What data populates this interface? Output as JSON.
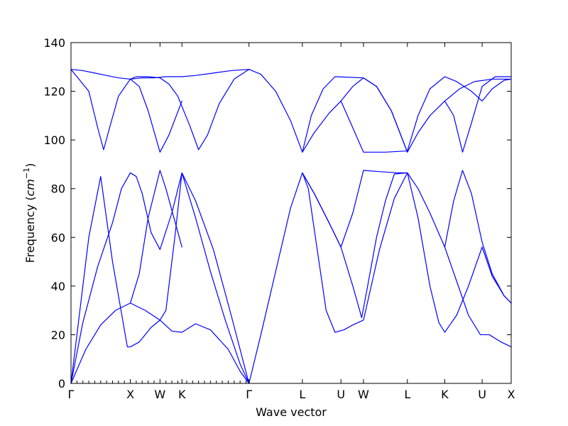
{
  "chart_data": {
    "type": "line",
    "title": "",
    "xlabel": "Wave vector",
    "ylabel": "Frequency",
    "ylabel_unit": "cm",
    "ylabel_unit_exponent": "−1",
    "ylim": [
      0,
      140
    ],
    "yticks": [
      0,
      20,
      40,
      60,
      80,
      100,
      120,
      140
    ],
    "xlim": [
      0,
      7.42
    ],
    "high_symmetry_points": [
      {
        "label": "Γ",
        "x": 0
      },
      {
        "label": "X",
        "x": 1.0
      },
      {
        "label": "W",
        "x": 1.5
      },
      {
        "label": "K",
        "x": 1.87
      },
      {
        "label": "Γ",
        "x": 3.0
      },
      {
        "label": "L",
        "x": 3.9
      },
      {
        "label": "U",
        "x": 4.55
      },
      {
        "label": "W",
        "x": 4.93
      },
      {
        "label": "L",
        "x": 5.67
      },
      {
        "label": "K",
        "x": 6.3
      },
      {
        "label": "U",
        "x": 6.93
      },
      {
        "label": "X",
        "x": 7.42
      }
    ],
    "minor_ticks_x": [
      0.1,
      0.2,
      0.3,
      0.4,
      0.5,
      0.6,
      0.7,
      0.8,
      0.9,
      1.1,
      1.2,
      1.3,
      1.4,
      1.6,
      1.7,
      1.8,
      1.95,
      2.05,
      2.15,
      2.25,
      2.35,
      2.45,
      2.55,
      2.65,
      2.75,
      2.85,
      2.95
    ],
    "grid": false,
    "legend": "none",
    "line_color": "#0000ff",
    "series": [
      {
        "points": [
          [
            0,
            0
          ],
          [
            0.25,
            14
          ],
          [
            0.5,
            24
          ],
          [
            0.75,
            30
          ],
          [
            1.0,
            33
          ],
          [
            1.25,
            30
          ],
          [
            1.5,
            26
          ],
          [
            1.7,
            21.5
          ],
          [
            1.87,
            21
          ],
          [
            2.1,
            24.5
          ],
          [
            2.35,
            22
          ],
          [
            2.65,
            14
          ],
          [
            2.85,
            5
          ],
          [
            3.0,
            0
          ]
        ]
      },
      {
        "points": [
          [
            0,
            0
          ],
          [
            0.2,
            25
          ],
          [
            0.45,
            48
          ],
          [
            0.7,
            66
          ],
          [
            0.85,
            80
          ],
          [
            1.0,
            86.5
          ],
          [
            1.1,
            85
          ],
          [
            1.2,
            78
          ],
          [
            1.35,
            62
          ],
          [
            1.5,
            55
          ],
          [
            1.7,
            70
          ],
          [
            1.87,
            86.5
          ],
          [
            2.1,
            75
          ],
          [
            2.4,
            55
          ],
          [
            2.7,
            28
          ],
          [
            3.0,
            0
          ]
        ]
      },
      {
        "points": [
          [
            0,
            0
          ],
          [
            0.3,
            60
          ],
          [
            0.5,
            85
          ],
          [
            0.7,
            50
          ],
          [
            0.95,
            15
          ],
          [
            1.0,
            15
          ],
          [
            1.15,
            17
          ],
          [
            1.35,
            23
          ],
          [
            1.5,
            26
          ],
          [
            1.6,
            30
          ],
          [
            1.75,
            60
          ],
          [
            1.87,
            86.5
          ],
          [
            2.1,
            68
          ],
          [
            2.35,
            46
          ],
          [
            2.6,
            26
          ],
          [
            2.85,
            8
          ],
          [
            3.0,
            0
          ]
        ]
      },
      {
        "points": [
          [
            1.0,
            33
          ],
          [
            1.15,
            45
          ],
          [
            1.3,
            68
          ],
          [
            1.5,
            87.5
          ],
          [
            1.6,
            80
          ],
          [
            1.87,
            56
          ]
        ]
      },
      {
        "points": [
          [
            3.0,
            0
          ],
          [
            3.2,
            20
          ],
          [
            3.45,
            46
          ],
          [
            3.7,
            72
          ],
          [
            3.9,
            86.5
          ],
          [
            4.0,
            80
          ],
          [
            4.15,
            55
          ],
          [
            4.3,
            30
          ],
          [
            4.45,
            21
          ],
          [
            4.6,
            22
          ],
          [
            4.75,
            24
          ],
          [
            4.93,
            26
          ],
          [
            5.2,
            55
          ],
          [
            5.45,
            76
          ],
          [
            5.67,
            86.5
          ],
          [
            5.85,
            68
          ],
          [
            6.05,
            40
          ],
          [
            6.2,
            25
          ],
          [
            6.3,
            21
          ],
          [
            6.5,
            28
          ],
          [
            6.7,
            40
          ],
          [
            6.93,
            56
          ],
          [
            7.1,
            44
          ],
          [
            7.3,
            36
          ],
          [
            7.42,
            33
          ]
        ]
      },
      {
        "points": [
          [
            3.9,
            86.5
          ],
          [
            4.1,
            78
          ],
          [
            4.35,
            66
          ],
          [
            4.55,
            56
          ],
          [
            4.75,
            40
          ],
          [
            4.9,
            27
          ],
          [
            5.0,
            40
          ],
          [
            5.15,
            60
          ],
          [
            5.3,
            75
          ],
          [
            5.45,
            86
          ],
          [
            5.67,
            86.5
          ],
          [
            5.85,
            80
          ],
          [
            6.05,
            70
          ],
          [
            6.3,
            56
          ],
          [
            6.5,
            42
          ],
          [
            6.7,
            28
          ],
          [
            6.9,
            20
          ],
          [
            7.05,
            20
          ],
          [
            7.25,
            17
          ],
          [
            7.42,
            15
          ]
        ]
      },
      {
        "points": [
          [
            3.9,
            86.5
          ],
          [
            4.1,
            78
          ],
          [
            4.35,
            66
          ],
          [
            4.55,
            56
          ],
          [
            4.75,
            70
          ],
          [
            4.93,
            87.5
          ],
          [
            5.2,
            87
          ],
          [
            5.5,
            86.5
          ],
          [
            5.67,
            86.5
          ]
        ]
      },
      {
        "points": [
          [
            6.3,
            56
          ],
          [
            6.45,
            75
          ],
          [
            6.6,
            87.5
          ],
          [
            6.75,
            78
          ],
          [
            6.93,
            58
          ],
          [
            7.1,
            45
          ],
          [
            7.3,
            36
          ],
          [
            7.42,
            33
          ]
        ]
      },
      {
        "points": [
          [
            0,
            129
          ],
          [
            0.2,
            128.5
          ],
          [
            0.4,
            127.5
          ],
          [
            0.6,
            126.5
          ],
          [
            0.8,
            125.5
          ],
          [
            1.0,
            125
          ],
          [
            1.2,
            125.5
          ],
          [
            1.4,
            125.5
          ],
          [
            1.6,
            126
          ],
          [
            1.87,
            126
          ],
          [
            2.1,
            126.5
          ],
          [
            2.4,
            127.5
          ],
          [
            2.7,
            128.5
          ],
          [
            3.0,
            129
          ]
        ]
      },
      {
        "points": [
          [
            0,
            129
          ],
          [
            0.3,
            120
          ],
          [
            0.45,
            105
          ],
          [
            0.55,
            96
          ],
          [
            0.65,
            105
          ],
          [
            0.8,
            118
          ],
          [
            1.0,
            125
          ],
          [
            1.1,
            126
          ],
          [
            1.3,
            126
          ],
          [
            1.5,
            125.5
          ],
          [
            1.65,
            123
          ],
          [
            1.8,
            118
          ],
          [
            2.0,
            106
          ],
          [
            2.15,
            96
          ],
          [
            2.3,
            102
          ],
          [
            2.5,
            115
          ],
          [
            2.75,
            125
          ],
          [
            3.0,
            129
          ]
        ]
      },
      {
        "points": [
          [
            1.0,
            125
          ],
          [
            1.15,
            122
          ],
          [
            1.3,
            112
          ],
          [
            1.5,
            95
          ],
          [
            1.65,
            102
          ],
          [
            1.87,
            116
          ]
        ]
      },
      {
        "points": [
          [
            3.0,
            129
          ],
          [
            3.2,
            127
          ],
          [
            3.45,
            120
          ],
          [
            3.7,
            108
          ],
          [
            3.9,
            95
          ],
          [
            4.1,
            103
          ],
          [
            4.35,
            111
          ],
          [
            4.55,
            116
          ],
          [
            4.75,
            122
          ],
          [
            4.93,
            125.5
          ],
          [
            5.15,
            122
          ],
          [
            5.4,
            112
          ],
          [
            5.67,
            95
          ],
          [
            5.85,
            103
          ],
          [
            6.05,
            110
          ],
          [
            6.3,
            116
          ],
          [
            6.55,
            121
          ],
          [
            6.8,
            124
          ],
          [
            7.1,
            125
          ],
          [
            7.42,
            125
          ]
        ]
      },
      {
        "points": [
          [
            3.9,
            95
          ],
          [
            4.05,
            110
          ],
          [
            4.25,
            121
          ],
          [
            4.45,
            126
          ],
          [
            4.93,
            125.5
          ],
          [
            5.15,
            122
          ],
          [
            5.4,
            112
          ],
          [
            5.67,
            95
          ]
        ]
      },
      {
        "points": [
          [
            4.55,
            116
          ],
          [
            4.75,
            105
          ],
          [
            4.93,
            95
          ],
          [
            5.3,
            95
          ],
          [
            5.67,
            95.5
          ],
          [
            5.85,
            110
          ],
          [
            6.05,
            121
          ],
          [
            6.3,
            126
          ],
          [
            6.5,
            124
          ],
          [
            6.75,
            120
          ],
          [
            6.93,
            116
          ],
          [
            7.1,
            121
          ],
          [
            7.3,
            124.5
          ],
          [
            7.42,
            125
          ]
        ]
      },
      {
        "points": [
          [
            6.3,
            116
          ],
          [
            6.45,
            110
          ],
          [
            6.6,
            95
          ],
          [
            6.75,
            107
          ],
          [
            6.93,
            122
          ],
          [
            7.15,
            126
          ],
          [
            7.42,
            126
          ]
        ]
      }
    ]
  }
}
